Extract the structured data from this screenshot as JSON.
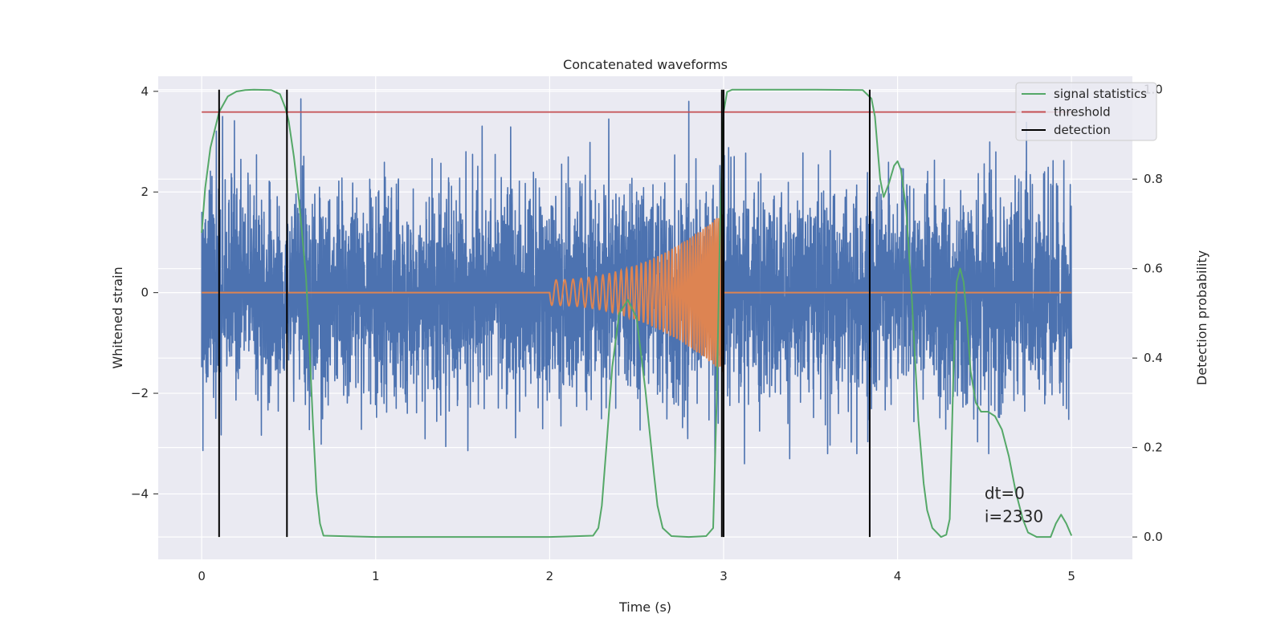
{
  "chart_data": {
    "type": "line",
    "title": "Concatenated waveforms",
    "xlabel": "Time (s)",
    "ylabel": "Whitened strain",
    "y2label": "Detection probability",
    "xlim": [
      -0.25,
      5.35
    ],
    "ylim": [
      -5.3,
      4.3
    ],
    "y2lim": [
      -0.05,
      1.03
    ],
    "x_ticks": [
      0,
      1,
      2,
      3,
      4,
      5
    ],
    "y_ticks": [
      -4,
      -2,
      0,
      2,
      4
    ],
    "y2_ticks": [
      0.0,
      0.2,
      0.4,
      0.6,
      0.8,
      1.0
    ],
    "grid": true,
    "legend_position": "top-right",
    "legend": [
      {
        "label": "signal statistics",
        "color": "#55a868"
      },
      {
        "label": "threshold",
        "color": "#c44e52"
      },
      {
        "label": "detection",
        "color": "#000000"
      }
    ],
    "series": [
      {
        "kind": "whitened strain noise",
        "color": "#4c72b0",
        "x_range": [
          0,
          5
        ],
        "approx_amplitude": 1.3,
        "approx_peaks": [
          [
            0.57,
            3.85
          ],
          [
            2.34,
            3.45
          ],
          [
            2.8,
            3.8
          ],
          [
            2.95,
            -3.4
          ],
          [
            3.12,
            -3.4
          ],
          [
            3.38,
            -3.3
          ]
        ]
      },
      {
        "kind": "injected chirp",
        "color": "#dd8452",
        "x_range": [
          0,
          5
        ],
        "chirp_start": 2.0,
        "chirp_end": 3.0,
        "amplitude_start": 0.25,
        "amplitude_end": 1.6
      },
      {
        "name": "signal statistics",
        "axis": "right",
        "color": "#55a868",
        "x": [
          0,
          0.02,
          0.05,
          0.1,
          0.15,
          0.2,
          0.25,
          0.3,
          0.4,
          0.45,
          0.48,
          0.5,
          0.53,
          0.56,
          0.6,
          0.62,
          0.64,
          0.66,
          0.68,
          0.7,
          1.0,
          1.5,
          2.0,
          2.25,
          2.28,
          2.3,
          2.33,
          2.36,
          2.4,
          2.45,
          2.5,
          2.55,
          2.6,
          2.62,
          2.65,
          2.7,
          2.8,
          2.9,
          2.94,
          2.96,
          2.98,
          3.0,
          3.02,
          3.05,
          3.5,
          3.8,
          3.85,
          3.87,
          3.9,
          3.92,
          3.95,
          3.98,
          4.0,
          4.02,
          4.05,
          4.08,
          4.1,
          4.12,
          4.15,
          4.17,
          4.2,
          4.25,
          4.28,
          4.3,
          4.32,
          4.34,
          4.36,
          4.38,
          4.4,
          4.42,
          4.45,
          4.48,
          4.52,
          4.56,
          4.6,
          4.64,
          4.68,
          4.72,
          4.75,
          4.8,
          4.88,
          4.91,
          4.94,
          4.97,
          5.0
        ],
        "values": [
          0.68,
          0.78,
          0.87,
          0.95,
          0.985,
          0.996,
          0.999,
          1.0,
          0.999,
          0.99,
          0.96,
          0.93,
          0.85,
          0.75,
          0.58,
          0.42,
          0.25,
          0.1,
          0.03,
          0.003,
          0.0,
          0.0,
          0.0,
          0.003,
          0.02,
          0.07,
          0.22,
          0.38,
          0.5,
          0.53,
          0.49,
          0.33,
          0.14,
          0.07,
          0.02,
          0.002,
          0.0,
          0.002,
          0.02,
          0.3,
          0.7,
          0.95,
          0.995,
          1.0,
          1.0,
          0.999,
          0.98,
          0.94,
          0.8,
          0.76,
          0.79,
          0.83,
          0.84,
          0.82,
          0.73,
          0.55,
          0.4,
          0.26,
          0.12,
          0.06,
          0.02,
          0.0,
          0.005,
          0.04,
          0.35,
          0.57,
          0.6,
          0.57,
          0.48,
          0.37,
          0.3,
          0.28,
          0.28,
          0.27,
          0.24,
          0.18,
          0.1,
          0.04,
          0.01,
          0.0,
          0.0,
          0.03,
          0.05,
          0.03,
          0.003
        ]
      },
      {
        "name": "threshold",
        "axis": "right",
        "color": "#c44e52",
        "x": [
          0,
          5
        ],
        "values": [
          0.95,
          0.95
        ]
      },
      {
        "name": "detection",
        "color": "#000000",
        "vertical_lines_x": [
          0.1,
          0.49,
          2.99,
          3.0,
          3.84
        ]
      }
    ],
    "annotations": [
      "dt=0",
      "i=2330"
    ]
  }
}
